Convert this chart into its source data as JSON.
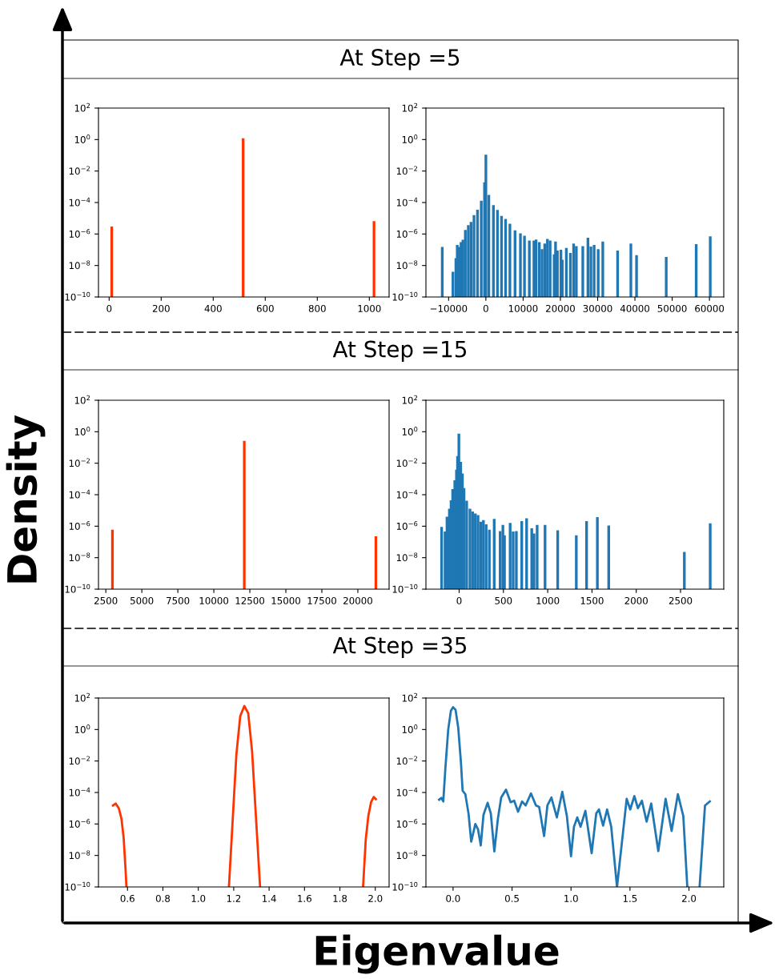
{
  "chart_data": [
    {
      "type": "bar",
      "title": "At Step =5",
      "log": "y",
      "color": "#ff3300",
      "x": [
        10,
        515,
        1018
      ],
      "values": [
        3e-06,
        1.2,
        6.6e-06
      ],
      "xlim": [
        -41,
        1076
      ],
      "xticks": [
        0,
        200,
        400,
        600,
        800,
        1000
      ],
      "ylim": [
        1e-10,
        100
      ],
      "yticks": [
        {
          "value": 1e-10,
          "label": "10$^{−10}$"
        },
        {
          "value": 1e-08,
          "label": "10$^{−8}$"
        },
        {
          "value": 1e-06,
          "label": "10$^{−6}$"
        },
        {
          "value": 0.0001,
          "label": "10$^{−4}$"
        },
        {
          "value": 0.01,
          "label": "10$^{−2}$"
        },
        {
          "value": 1,
          "label": "10$^{0}$"
        },
        {
          "value": 100,
          "label": "10$^{2}$"
        }
      ]
    },
    {
      "type": "bar",
      "log": "y",
      "color": "#1f77b4",
      "x": [
        -11700,
        -8840,
        -8043,
        -7681,
        -7174,
        -6667,
        -6159,
        -5507,
        -4710,
        -3985,
        -3188,
        -2246,
        -1232,
        -362,
        0,
        797,
        2029,
        3116,
        4203,
        5290,
        6449,
        7826,
        9275,
        10362,
        11666,
        12898,
        13478,
        14347,
        15072,
        15797,
        16521,
        17246,
        18333,
        18696,
        19203,
        20145,
        20507,
        21594,
        22681,
        23550,
        24275,
        26014,
        27391,
        28188,
        29058,
        30145,
        31377,
        35362,
        38913,
        40435,
        48404,
        56447,
        60215
      ],
      "values": [
        1.5e-07,
        4e-09,
        2.9e-08,
        2e-07,
        1.5e-07,
        3e-07,
        4.3e-07,
        1.8e-06,
        3.7e-06,
        5.9e-06,
        1.6e-05,
        3.5e-05,
        0.00013,
        0.0019,
        0.11,
        0.0003,
        6.8e-05,
        3.4e-05,
        1.4e-05,
        9e-06,
        4.5e-06,
        1.7e-06,
        1.1e-06,
        7.8e-07,
        3.9e-07,
        3.9e-07,
        4.4e-07,
        3e-07,
        1.1e-07,
        2.5e-07,
        4.9e-07,
        3.9e-07,
        5.1e-08,
        3.3e-07,
        9e-08,
        1e-07,
        2.3e-08,
        1.3e-07,
        6.3e-08,
        2.5e-07,
        1.7e-07,
        1.7e-07,
        5.8e-07,
        1.6e-07,
        2e-07,
        1.1e-07,
        3.3e-07,
        9e-08,
        2.5e-07,
        4.6e-08,
        3.5e-08,
        2.3e-07,
        7.2e-07
      ],
      "xlim": [
        -16087,
        63841
      ],
      "xticks": [
        {
          "value": -10000,
          "label": "−10000"
        },
        0,
        10000,
        20000,
        30000,
        40000,
        50000,
        60000
      ],
      "ylim": [
        1e-10,
        100
      ],
      "yticks": [
        {
          "value": 1e-10,
          "label": "10$^{−10}$"
        },
        {
          "value": 1e-08,
          "label": "10$^{−8}$"
        },
        {
          "value": 1e-06,
          "label": "10$^{−6}$"
        },
        {
          "value": 0.0001,
          "label": "10$^{−4}$"
        },
        {
          "value": 0.01,
          "label": "10$^{−2}$"
        },
        {
          "value": 1,
          "label": "10$^{0}$"
        },
        {
          "value": 100,
          "label": "10$^{2}$"
        }
      ]
    },
    {
      "type": "bar",
      "title": "At Step =15",
      "log": "y",
      "color": "#ff3300",
      "x": [
        2960,
        12115,
        21252
      ],
      "values": [
        6e-07,
        0.26,
        2.3e-07
      ],
      "xlim": [
        1990,
        22170
      ],
      "xticks": [
        2500,
        5000,
        7500,
        10000,
        12500,
        15000,
        17500,
        20000
      ],
      "ylim": [
        1e-10,
        100
      ],
      "yticks": [
        {
          "value": 1e-10,
          "label": "10$^{−10}$"
        },
        {
          "value": 1e-08,
          "label": "10$^{−8}$"
        },
        {
          "value": 1e-06,
          "label": "10$^{−6}$"
        },
        {
          "value": 0.0001,
          "label": "10$^{−4}$"
        },
        {
          "value": 0.01,
          "label": "10$^{−2}$"
        },
        {
          "value": 1,
          "label": "10$^{0}$"
        },
        {
          "value": 100,
          "label": "10$^{2}$"
        }
      ]
    },
    {
      "type": "bar",
      "log": "y",
      "color": "#1f77b4",
      "x": [
        -198,
        -159,
        -137,
        -110,
        -91,
        -73,
        -49,
        -30,
        -18,
        -3,
        18,
        37,
        55,
        85,
        122,
        152,
        183,
        213,
        244,
        274,
        305,
        341,
        396,
        463,
        494,
        512,
        576,
        610,
        646,
        707,
        762,
        820,
        845,
        881,
        970,
        1113,
        1323,
        1439,
        1561,
        1689,
        2543,
        2835
      ],
      "values": [
        8.9e-07,
        4.6e-07,
        4e-06,
        1.3e-05,
        4.4e-05,
        0.00023,
        0.00083,
        0.0039,
        0.028,
        0.76,
        0.012,
        0.0022,
        0.00026,
        4.1e-05,
        1.3e-05,
        8.5e-06,
        6.3e-06,
        5.1e-06,
        1.9e-06,
        2.4e-06,
        1.3e-06,
        6e-07,
        2.9e-06,
        4.9e-07,
        1.2e-06,
        2.6e-07,
        1.6e-06,
        4.6e-07,
        4.9e-07,
        2.1e-06,
        3.2e-06,
        7.3e-07,
        3.4e-07,
        1.2e-06,
        1.2e-06,
        5.4e-07,
        2.6e-07,
        2.1e-06,
        3.8e-06,
        1.1e-06,
        2.3e-08,
        1.5e-06
      ],
      "xlim": [
        -375,
        2988
      ],
      "xticks": [
        0,
        500,
        1000,
        1500,
        2000,
        2500
      ],
      "ylim": [
        1e-10,
        100
      ],
      "yticks": [
        {
          "value": 1e-10,
          "label": "10$^{−10}$"
        },
        {
          "value": 1e-08,
          "label": "10$^{−8}$"
        },
        {
          "value": 1e-06,
          "label": "10$^{−6}$"
        },
        {
          "value": 0.0001,
          "label": "10$^{−4}$"
        },
        {
          "value": 0.01,
          "label": "10$^{−2}$"
        },
        {
          "value": 1,
          "label": "10$^{0}$"
        },
        {
          "value": 100,
          "label": "10$^{2}$"
        }
      ]
    },
    {
      "type": "line",
      "title": "At Step =35",
      "log": "y",
      "color": "#ff3300",
      "x": [
        0.518,
        0.533,
        0.551,
        0.566,
        0.578,
        0.589,
        0.594,
        0.9,
        1.173,
        1.193,
        1.215,
        1.237,
        1.26,
        1.282,
        1.304,
        1.327,
        1.349,
        1.6,
        1.931,
        1.946,
        1.961,
        1.976,
        1.991,
        2.003
      ],
      "values": [
        1.5e-05,
        2e-05,
        1e-05,
        2.1e-06,
        1.4e-07,
        1.3e-09,
        1e-10,
        null,
        1e-10,
        1e-06,
        0.025,
        7.2,
        31,
        11,
        0.04,
        1.6e-06,
        1e-10,
        null,
        1e-10,
        1e-07,
        3.4e-06,
        2.4e-05,
        5.2e-05,
        3.8e-05
      ],
      "xlim": [
        0.436,
        2.078
      ],
      "xticks": [
        {
          "value": 0.6,
          "label": "0.6"
        },
        {
          "value": 0.8,
          "label": "0.8"
        },
        {
          "value": 1.0,
          "label": "1.0"
        },
        {
          "value": 1.2,
          "label": "1.2"
        },
        {
          "value": 1.4,
          "label": "1.4"
        },
        {
          "value": 1.6,
          "label": "1.6"
        },
        {
          "value": 1.8,
          "label": "1.8"
        },
        {
          "value": 2.0,
          "label": "2.0"
        }
      ],
      "ylim": [
        1e-10,
        100
      ],
      "yticks": [
        {
          "value": 1e-10,
          "label": "10$^{−10}$"
        },
        {
          "value": 1e-08,
          "label": "10$^{−8}$"
        },
        {
          "value": 1e-06,
          "label": "10$^{−6}$"
        },
        {
          "value": 0.0001,
          "label": "10$^{−4}$"
        },
        {
          "value": 0.01,
          "label": "10$^{−2}$"
        },
        {
          "value": 1,
          "label": "10$^{0}$"
        },
        {
          "value": 100,
          "label": "10$^{2}$"
        }
      ]
    },
    {
      "type": "line",
      "log": "y",
      "color": "#1f77b4",
      "x": [
        -0.118,
        -0.099,
        -0.083,
        -0.065,
        -0.041,
        -0.018,
        0,
        0.021,
        0.044,
        0.067,
        0.081,
        0.104,
        0.131,
        0.154,
        0.189,
        0.212,
        0.235,
        0.258,
        0.293,
        0.32,
        0.35,
        0.38,
        0.408,
        0.449,
        0.488,
        0.518,
        0.551,
        0.585,
        0.615,
        0.661,
        0.703,
        0.73,
        0.772,
        0.8,
        0.834,
        0.88,
        0.926,
        0.965,
        1.0,
        1.025,
        1.053,
        1.081,
        1.122,
        1.175,
        1.214,
        1.237,
        1.272,
        1.306,
        1.341,
        1.39,
        1.44,
        1.472,
        1.502,
        1.537,
        1.567,
        1.601,
        1.641,
        1.68,
        1.74,
        1.802,
        1.853,
        1.906,
        1.952,
        1.986,
        2.04,
        2.09,
        2.136,
        2.177
      ],
      "values": [
        3.5e-05,
        4.5e-05,
        2.7e-05,
        0.0035,
        1.0,
        16,
        26,
        18,
        1.3,
        0.0078,
        0.00013,
        7.8e-05,
        4.7e-06,
        7.6e-08,
        1e-06,
        4.5e-07,
        4.3e-08,
        3.8e-06,
        2.2e-05,
        4.7e-06,
        1.8e-08,
        2.1e-06,
        4.8e-05,
        0.00015,
        2.4e-05,
        3e-05,
        6e-06,
        2.7e-05,
        1.5e-05,
        8.7e-05,
        1.5e-05,
        1.2e-05,
        1.7e-07,
        1.5e-05,
        4.8e-05,
        2.6e-06,
        0.00011,
        3.2e-06,
        8.9e-09,
        6.6e-07,
        2.6e-06,
        6.6e-07,
        6.9e-06,
        1.4e-08,
        4.7e-06,
        8.3e-06,
        7.9e-07,
        8.3e-06,
        6.6e-07,
        1e-10,
        2.5e-07,
        4e-05,
        8.3e-06,
        5.9e-05,
        1e-05,
        3e-05,
        1.4e-06,
        2e-05,
        1.9e-08,
        4e-05,
        3.6e-07,
        7.8e-05,
        3.2e-06,
        1e-10,
        null,
        1e-10,
        1.5e-05,
        2.7e-05
      ],
      "xlim": [
        -0.23,
        2.295
      ],
      "xticks": [
        {
          "value": 0.0,
          "label": "0.0"
        },
        {
          "value": 0.5,
          "label": "0.5"
        },
        {
          "value": 1.0,
          "label": "1.0"
        },
        {
          "value": 1.5,
          "label": "1.5"
        },
        {
          "value": 2.0,
          "label": "2.0"
        }
      ],
      "ylim": [
        1e-10,
        100
      ],
      "yticks": [
        {
          "value": 1e-10,
          "label": "10$^{−10}$"
        },
        {
          "value": 1e-08,
          "label": "10$^{−8}$"
        },
        {
          "value": 1e-06,
          "label": "10$^{−6}$"
        },
        {
          "value": 0.0001,
          "label": "10$^{−4}$"
        },
        {
          "value": 0.01,
          "label": "10$^{−2}$"
        },
        {
          "value": 1,
          "label": "10$^{0}$"
        },
        {
          "value": 100,
          "label": "10$^{2}$"
        }
      ]
    },
    {
      "type": "other",
      "ylabel": "Density",
      "xlabel": "Eigenvalue"
    }
  ]
}
